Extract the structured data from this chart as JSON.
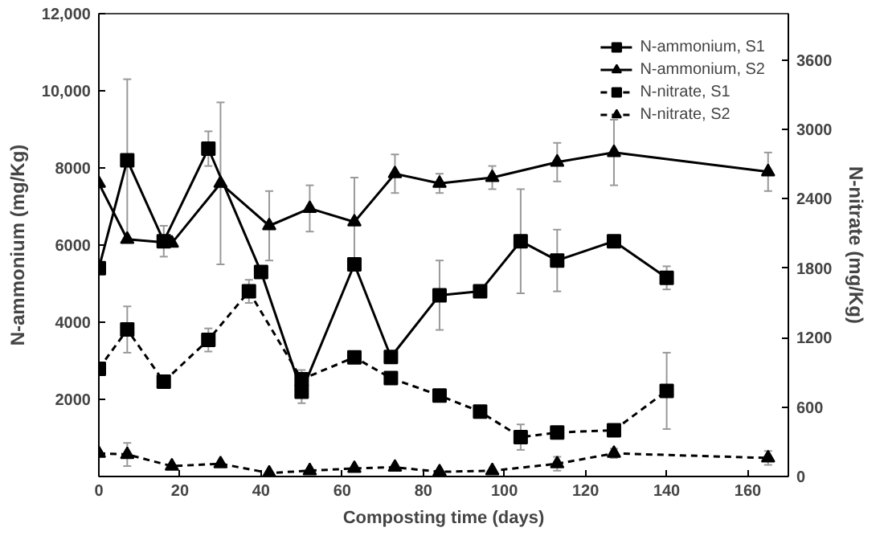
{
  "chart_data": {
    "type": "line",
    "xlabel": "Composting time (days)",
    "ylabel": "N-ammonium (mg/Kg)",
    "y2label": "N-nitrate (mg/Kg)",
    "xlim": [
      0,
      170
    ],
    "xticks": [
      0,
      20,
      40,
      60,
      80,
      100,
      120,
      140,
      160
    ],
    "ylim": [
      0,
      12000
    ],
    "yticks": [
      {
        "value": 0,
        "label": null
      },
      2000,
      4000,
      6000,
      8000,
      {
        "value": 10000,
        "label": "10,000"
      },
      {
        "value": 12000,
        "label": "12,000"
      }
    ],
    "y2lim": [
      0,
      4000
    ],
    "y2ticks": [
      0,
      600,
      1200,
      1800,
      2400,
      3000,
      3600
    ],
    "grid": false,
    "legend": "top right",
    "series": [
      {
        "name": "N-ammonium, S1",
        "color": "#000000",
        "marker": "square",
        "line_style": "solid",
        "x": [
          0,
          7,
          16,
          27,
          40,
          50,
          63,
          72,
          84,
          94,
          104,
          113,
          127,
          140
        ],
        "values": [
          5400,
          8200,
          6100,
          8500,
          5300,
          2200,
          5500,
          3100,
          4700,
          4800,
          6100,
          5600,
          6100,
          5150
        ],
        "errors": [
          null,
          2100,
          400,
          450,
          null,
          300,
          null,
          null,
          900,
          null,
          1350,
          800,
          null,
          300
        ]
      },
      {
        "name": "N-ammonium, S2",
        "color": "#000000",
        "marker": "triangle",
        "line_style": "solid",
        "x": [
          0,
          7,
          18,
          30,
          42,
          52,
          63,
          73,
          84,
          97,
          113,
          127,
          165
        ],
        "values": [
          7600,
          6150,
          6050,
          7600,
          6500,
          6950,
          6600,
          7850,
          7600,
          7750,
          8150,
          8400,
          7900
        ],
        "errors": [
          null,
          null,
          null,
          2100,
          900,
          600,
          1150,
          500,
          250,
          300,
          500,
          850,
          500
        ]
      },
      {
        "name": "N-nitrate, S1",
        "color": "#000000",
        "marker": "square",
        "line_style": "dashed",
        "axis": "y2",
        "x": [
          0,
          7,
          16,
          27,
          37,
          50,
          63,
          72,
          84,
          94,
          104,
          113,
          127,
          140
        ],
        "values": [
          930,
          1270,
          820,
          1180,
          1600,
          840,
          1030,
          850,
          700,
          560,
          340,
          380,
          400,
          740
        ],
        "errors": [
          null,
          200,
          null,
          100,
          100,
          80,
          null,
          null,
          null,
          null,
          110,
          null,
          30,
          330
        ]
      },
      {
        "name": "N-nitrate, S2",
        "color": "#000000",
        "marker": "triangle",
        "line_style": "dashed",
        "axis": "y2",
        "x": [
          0,
          7,
          18,
          30,
          42,
          52,
          63,
          73,
          84,
          97,
          113,
          127,
          165
        ],
        "values": [
          200,
          190,
          90,
          110,
          30,
          50,
          70,
          80,
          40,
          50,
          110,
          200,
          160
        ],
        "errors": [
          null,
          100,
          null,
          null,
          null,
          null,
          null,
          null,
          null,
          null,
          60,
          40,
          60
        ]
      }
    ]
  }
}
